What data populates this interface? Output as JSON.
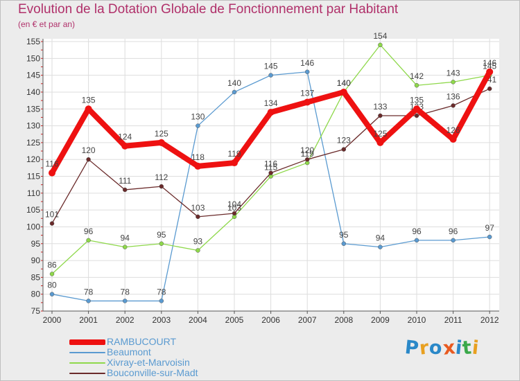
{
  "chart_data": {
    "type": "line",
    "title": "Evolution de la Dotation Globale de Fonctionnement par Habitant",
    "subtitle": "(en € et par an)",
    "xlabel": "",
    "ylabel": "",
    "ylim": [
      75,
      155
    ],
    "yticks": [
      75,
      80,
      85,
      90,
      95,
      100,
      105,
      110,
      115,
      120,
      125,
      130,
      135,
      140,
      145,
      150,
      155
    ],
    "grid": true,
    "legend_position": "bottom-left",
    "categories": [
      "2000",
      "2001",
      "2002",
      "2003",
      "2004",
      "2005",
      "2006",
      "2007",
      "2008",
      "2009",
      "2010",
      "2011",
      "2012"
    ],
    "series": [
      {
        "name": "RAMBUCOURT",
        "color": "#ee1111",
        "values": [
          116,
          135,
          124,
          125,
          118,
          119,
          134,
          137,
          140,
          125,
          135,
          126,
          146
        ]
      },
      {
        "name": "Beaumont",
        "color": "#5a9ad0",
        "values": [
          80,
          78,
          78,
          78,
          130,
          140,
          145,
          146,
          95,
          94,
          96,
          96,
          97
        ]
      },
      {
        "name": "Xivray-et-Marvoisin",
        "color": "#8ed84a",
        "values": [
          86,
          96,
          94,
          95,
          93,
          103,
          115,
          119,
          140,
          154,
          142,
          143,
          145
        ]
      },
      {
        "name": "Bouconville-sur-Madt",
        "color": "#6a2a2a",
        "values": [
          101,
          120,
          111,
          112,
          103,
          104,
          116,
          120,
          123,
          133,
          133,
          136,
          141
        ]
      }
    ]
  },
  "brand": {
    "text": "Proxiti",
    "colors": [
      "#2a88c8",
      "#e8a020",
      "#2a88c8",
      "#e85a20",
      "#2a88c8",
      "#3aa84a",
      "#e8a020"
    ]
  }
}
